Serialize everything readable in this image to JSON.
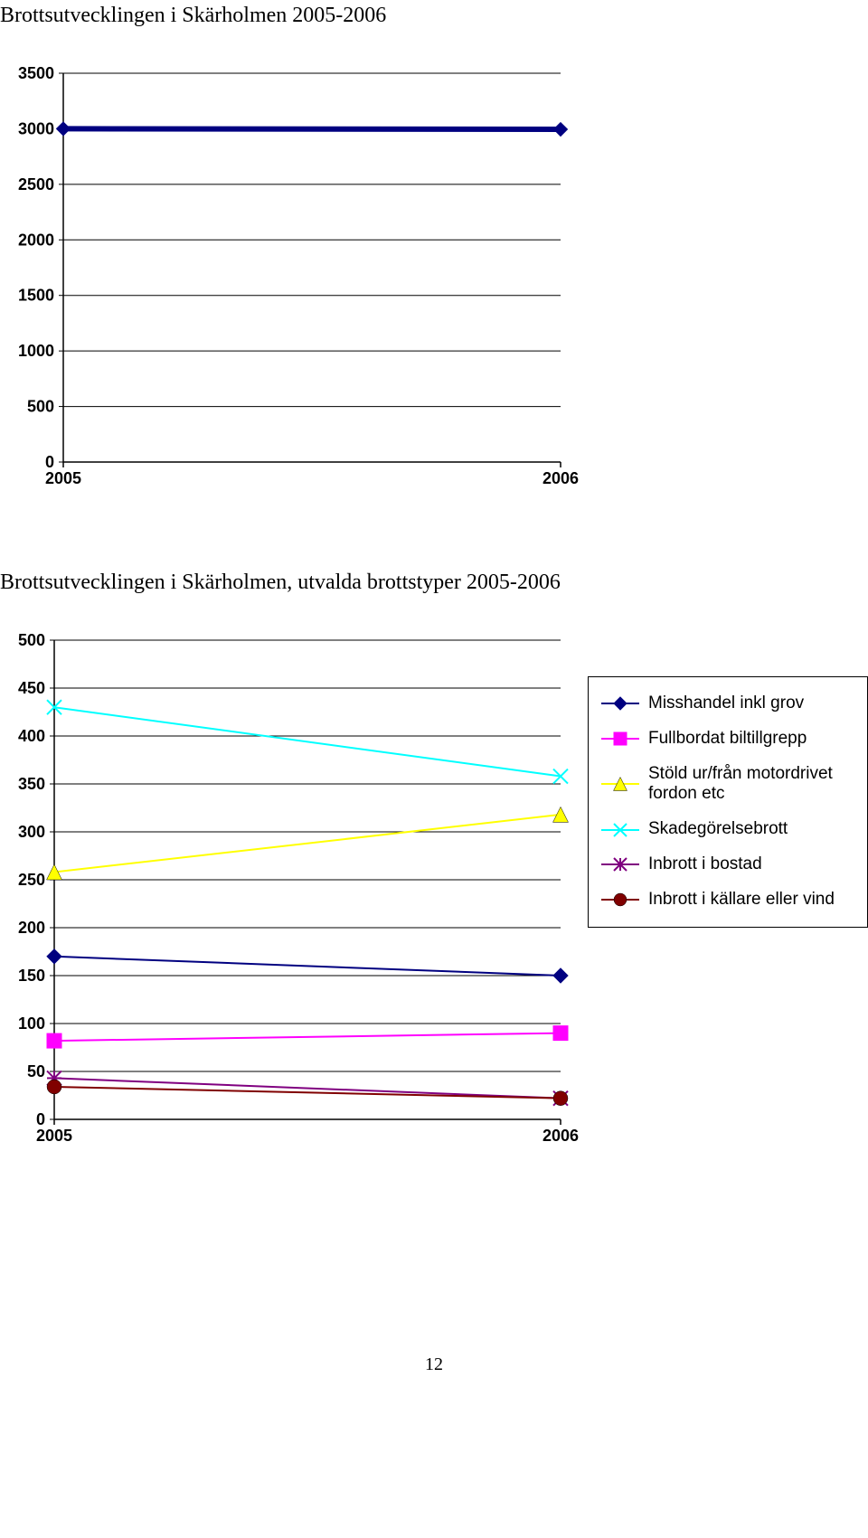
{
  "page": {
    "background_color": "#ffffff",
    "page_number": "12"
  },
  "chart_top": {
    "type": "line",
    "title": "Brottsutvecklingen i Skärholmen 2005-2006",
    "title_fontsize": 24,
    "axis_font_family": "Arial",
    "axis_font_weight": "bold",
    "axis_fontsize": 18,
    "axis_color": "#000000",
    "grid_color": "#000000",
    "plot_background": "#ffffff",
    "x_categories": [
      "2005",
      "2006"
    ],
    "ylim": [
      0,
      3500
    ],
    "ytick_step": 500,
    "yticks": [
      0,
      500,
      1000,
      1500,
      2000,
      2500,
      3000,
      3500
    ],
    "series": [
      {
        "name": "total",
        "values": [
          3000,
          2995
        ],
        "color": "#000080",
        "line_width": 6,
        "marker": "diamond",
        "marker_size": 9
      }
    ]
  },
  "chart_bottom": {
    "type": "line",
    "title": "Brottsutvecklingen i Skärholmen, utvalda brottstyper 2005-2006",
    "title_fontsize": 24,
    "axis_font_family": "Arial",
    "axis_font_weight": "bold",
    "axis_fontsize": 18,
    "axis_color": "#000000",
    "grid_color": "#000000",
    "plot_background": "#ffffff",
    "x_categories": [
      "2005",
      "2006"
    ],
    "ylim": [
      0,
      500
    ],
    "ytick_step": 50,
    "yticks": [
      0,
      50,
      100,
      150,
      200,
      250,
      300,
      350,
      400,
      450,
      500
    ],
    "legend_position": "right-middle",
    "legend_border_color": "#000000",
    "legend_fontsize": 19,
    "series": [
      {
        "name": "misshandel",
        "label": "Misshandel inkl grov",
        "values": [
          170,
          150
        ],
        "color": "#000080",
        "line_width": 2,
        "marker": "diamond",
        "marker_size": 10
      },
      {
        "name": "biltillgrepp",
        "label": "Fullbordat biltillgrepp",
        "values": [
          82,
          90
        ],
        "color": "#ff00ff",
        "line_width": 2,
        "marker": "square",
        "marker_size": 10
      },
      {
        "name": "stold",
        "label": "Stöld ur/från motordrivet fordon etc",
        "values": [
          258,
          318
        ],
        "color": "#ffff00",
        "line_width": 2,
        "marker": "triangle",
        "marker_size": 11
      },
      {
        "name": "skadegorelse",
        "label": "Skadegörelsebrott",
        "values": [
          430,
          358
        ],
        "color": "#00ffff",
        "line_width": 2,
        "marker": "x",
        "marker_size": 10
      },
      {
        "name": "inbrott_bostad",
        "label": "Inbrott i bostad",
        "values": [
          43,
          22
        ],
        "color": "#800080",
        "line_width": 2,
        "marker": "asterisk",
        "marker_size": 10
      },
      {
        "name": "inbrott_kallare",
        "label": "Inbrott i källare eller vind",
        "values": [
          34,
          22
        ],
        "color": "#800000",
        "line_width": 2,
        "marker": "circle",
        "marker_size": 10
      }
    ]
  }
}
